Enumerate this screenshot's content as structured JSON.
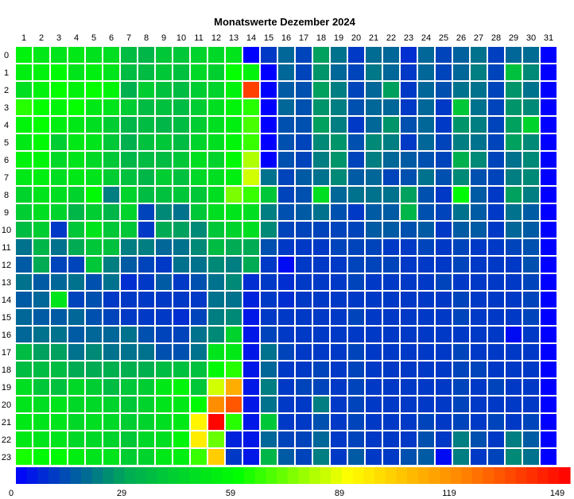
{
  "chart_data": {
    "type": "heatmap",
    "title": "Monatswerte Dezember 2024",
    "x_categories": [
      "1",
      "2",
      "3",
      "4",
      "5",
      "6",
      "7",
      "8",
      "9",
      "10",
      "11",
      "12",
      "13",
      "14",
      "15",
      "16",
      "17",
      "18",
      "19",
      "20",
      "21",
      "22",
      "23",
      "24",
      "25",
      "26",
      "27",
      "28",
      "29",
      "30",
      "31"
    ],
    "y_categories": [
      "0",
      "1",
      "2",
      "3",
      "4",
      "5",
      "6",
      "7",
      "8",
      "9",
      "10",
      "11",
      "12",
      "13",
      "14",
      "15",
      "16",
      "17",
      "18",
      "19",
      "20",
      "21",
      "22",
      "23"
    ],
    "x_position": "top",
    "colorbar": {
      "min": 0,
      "max": 149,
      "ticks": [
        "0",
        "29",
        "59",
        "89",
        "119",
        "149"
      ],
      "placement": "bottom",
      "colors": [
        "#0000ff",
        "#00aa55",
        "#00ff00",
        "#ffff00",
        "#ff8800",
        "#ff0000"
      ]
    },
    "missing_value": 0,
    "values": [
      [
        55,
        52,
        50,
        52,
        49,
        48,
        36,
        34,
        40,
        40,
        44,
        46,
        50,
        0,
        10,
        18,
        12,
        28,
        20,
        10,
        19,
        18,
        8,
        18,
        12,
        17,
        20,
        11,
        18,
        19,
        0
      ],
      [
        54,
        55,
        58,
        50,
        54,
        50,
        36,
        36,
        40,
        38,
        46,
        43,
        60,
        55,
        0,
        18,
        12,
        26,
        18,
        12,
        21,
        18,
        10,
        18,
        12,
        18,
        22,
        12,
        38,
        24,
        0
      ],
      [
        48,
        55,
        60,
        55,
        60,
        56,
        32,
        42,
        38,
        36,
        42,
        44,
        55,
        135,
        0,
        16,
        14,
        28,
        22,
        12,
        18,
        28,
        10,
        18,
        14,
        20,
        20,
        12,
        26,
        20,
        0
      ],
      [
        64,
        60,
        56,
        60,
        52,
        50,
        42,
        36,
        38,
        36,
        42,
        48,
        56,
        64,
        0,
        18,
        14,
        26,
        22,
        14,
        18,
        18,
        10,
        18,
        10,
        40,
        20,
        12,
        26,
        24,
        0
      ],
      [
        56,
        60,
        54,
        52,
        48,
        42,
        34,
        36,
        34,
        36,
        42,
        48,
        54,
        68,
        0,
        14,
        14,
        28,
        22,
        10,
        18,
        26,
        14,
        18,
        10,
        26,
        22,
        12,
        28,
        44,
        0
      ],
      [
        52,
        58,
        42,
        52,
        50,
        40,
        32,
        38,
        40,
        36,
        44,
        48,
        56,
        66,
        0,
        14,
        12,
        24,
        26,
        14,
        24,
        22,
        10,
        18,
        12,
        22,
        20,
        12,
        28,
        24,
        0
      ],
      [
        55,
        56,
        46,
        50,
        46,
        40,
        34,
        36,
        36,
        40,
        48,
        44,
        58,
        80,
        0,
        14,
        12,
        22,
        26,
        12,
        22,
        18,
        16,
        14,
        12,
        32,
        24,
        12,
        20,
        24,
        0
      ],
      [
        52,
        54,
        48,
        52,
        50,
        42,
        38,
        34,
        42,
        38,
        46,
        48,
        54,
        84,
        20,
        12,
        16,
        20,
        24,
        16,
        18,
        12,
        14,
        20,
        14,
        24,
        14,
        12,
        22,
        24,
        0
      ],
      [
        44,
        50,
        48,
        44,
        58,
        22,
        44,
        36,
        38,
        40,
        40,
        48,
        74,
        66,
        40,
        12,
        14,
        48,
        18,
        20,
        20,
        20,
        28,
        14,
        10,
        58,
        16,
        10,
        28,
        22,
        0
      ],
      [
        42,
        48,
        44,
        34,
        42,
        34,
        44,
        12,
        24,
        20,
        40,
        48,
        50,
        48,
        22,
        14,
        16,
        20,
        14,
        10,
        16,
        16,
        34,
        14,
        12,
        20,
        16,
        10,
        20,
        16,
        0
      ],
      [
        36,
        42,
        10,
        40,
        50,
        40,
        40,
        10,
        30,
        28,
        24,
        40,
        44,
        48,
        24,
        12,
        12,
        12,
        12,
        12,
        16,
        16,
        14,
        16,
        10,
        16,
        16,
        10,
        18,
        16,
        0
      ],
      [
        20,
        34,
        20,
        30,
        40,
        38,
        22,
        22,
        18,
        20,
        24,
        36,
        30,
        30,
        14,
        10,
        10,
        10,
        12,
        12,
        12,
        10,
        10,
        12,
        10,
        12,
        10,
        10,
        12,
        14,
        0
      ],
      [
        16,
        30,
        12,
        12,
        40,
        22,
        16,
        12,
        10,
        20,
        20,
        24,
        22,
        30,
        10,
        2,
        10,
        10,
        10,
        12,
        12,
        12,
        10,
        10,
        10,
        12,
        10,
        10,
        10,
        14,
        0
      ],
      [
        20,
        16,
        18,
        20,
        14,
        20,
        8,
        10,
        16,
        10,
        14,
        20,
        24,
        8,
        10,
        8,
        10,
        10,
        10,
        12,
        10,
        10,
        10,
        10,
        12,
        10,
        10,
        10,
        10,
        12,
        0
      ],
      [
        16,
        18,
        50,
        12,
        14,
        10,
        10,
        10,
        10,
        10,
        10,
        20,
        20,
        6,
        10,
        8,
        10,
        10,
        10,
        10,
        10,
        10,
        10,
        10,
        10,
        12,
        10,
        10,
        10,
        12,
        0
      ],
      [
        18,
        16,
        16,
        18,
        14,
        12,
        10,
        10,
        10,
        8,
        12,
        22,
        24,
        4,
        10,
        10,
        10,
        10,
        10,
        12,
        10,
        10,
        10,
        10,
        10,
        12,
        10,
        10,
        10,
        12,
        0
      ],
      [
        18,
        20,
        20,
        16,
        18,
        18,
        20,
        14,
        12,
        12,
        20,
        24,
        44,
        4,
        12,
        10,
        10,
        10,
        10,
        10,
        10,
        10,
        10,
        10,
        10,
        10,
        10,
        10,
        2,
        10,
        0
      ],
      [
        36,
        28,
        28,
        20,
        24,
        20,
        20,
        20,
        14,
        14,
        20,
        50,
        52,
        4,
        20,
        12,
        10,
        10,
        10,
        12,
        10,
        10,
        10,
        10,
        10,
        12,
        10,
        10,
        10,
        10,
        0
      ],
      [
        36,
        36,
        36,
        30,
        30,
        32,
        32,
        32,
        36,
        38,
        38,
        58,
        64,
        4,
        18,
        10,
        10,
        12,
        10,
        12,
        10,
        10,
        10,
        10,
        10,
        12,
        12,
        10,
        10,
        10,
        0
      ],
      [
        48,
        40,
        38,
        46,
        42,
        36,
        40,
        42,
        52,
        56,
        40,
        84,
        110,
        4,
        22,
        10,
        12,
        12,
        10,
        12,
        10,
        10,
        10,
        10,
        10,
        12,
        10,
        12,
        10,
        10,
        0
      ],
      [
        50,
        48,
        50,
        46,
        46,
        44,
        40,
        44,
        50,
        52,
        58,
        118,
        130,
        4,
        20,
        10,
        10,
        22,
        10,
        12,
        10,
        10,
        10,
        10,
        10,
        12,
        10,
        10,
        10,
        10,
        0
      ],
      [
        52,
        50,
        50,
        46,
        48,
        46,
        42,
        44,
        48,
        52,
        92,
        148,
        64,
        4,
        40,
        10,
        10,
        14,
        10,
        12,
        10,
        10,
        10,
        12,
        10,
        12,
        10,
        12,
        10,
        12,
        0
      ],
      [
        52,
        50,
        50,
        46,
        46,
        44,
        40,
        46,
        48,
        56,
        94,
        72,
        6,
        4,
        18,
        12,
        12,
        18,
        10,
        12,
        10,
        10,
        10,
        14,
        10,
        22,
        14,
        10,
        22,
        16,
        0
      ],
      [
        62,
        58,
        58,
        54,
        50,
        50,
        42,
        44,
        52,
        54,
        66,
        102,
        10,
        4,
        34,
        16,
        12,
        22,
        10,
        16,
        10,
        10,
        14,
        16,
        2,
        22,
        10,
        12,
        24,
        20,
        0
      ]
    ]
  }
}
